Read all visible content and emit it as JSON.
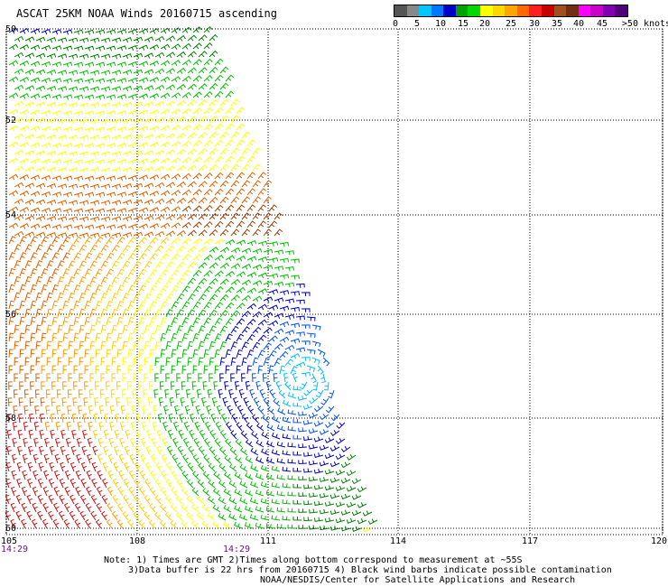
{
  "title": "ASCAT 25KM NOAA Winds 20160715 ascending",
  "colorbar": {
    "colors": [
      "#555555",
      "#888888",
      "#00c8ff",
      "#0078ff",
      "#0000c8",
      "#00a000",
      "#00d800",
      "#ffff00",
      "#ffd700",
      "#ffa500",
      "#ff6a00",
      "#ff1e1e",
      "#c80000",
      "#a05020",
      "#6e3010",
      "#ff00ff",
      "#c800c8",
      "#8200b4",
      "#500078"
    ],
    "labels": [
      "0",
      "5",
      "10",
      "15",
      "20",
      "25",
      "30",
      "35",
      "40",
      "45",
      ">50 knots"
    ]
  },
  "axes": {
    "lat_labels": [
      "50",
      "52",
      "54",
      "56",
      "58",
      "60"
    ],
    "lon_labels": [
      "105",
      "108",
      "111",
      "114",
      "117",
      "120"
    ],
    "lat_range": [
      -50,
      -60
    ],
    "lon_range": [
      105,
      120
    ],
    "grid": "dotted"
  },
  "time_labels": [
    "14:29",
    "14:29"
  ],
  "notes": [
    "Note: 1) Times are GMT 2)Times along bottom correspond to measurement at ~55S",
    "3)Data buffer is 22 hrs from 20160715 4) Black wind barbs indicate possible contamination",
    "NOAA/NESDIS/Center for Satellite Applications and Research"
  ],
  "wind_colors": {
    "c0_5": "#888888",
    "c10": "#00bfff",
    "c15": "#0050ff",
    "c20": "#0000c0",
    "c25_g": "#008000",
    "c25": "#00c000",
    "c30": "#ffff00",
    "c35": "#ffd000",
    "c40": "#ff9a00",
    "c45": "#e06000",
    "c50": "#d01010",
    "c55": "#a04000"
  }
}
